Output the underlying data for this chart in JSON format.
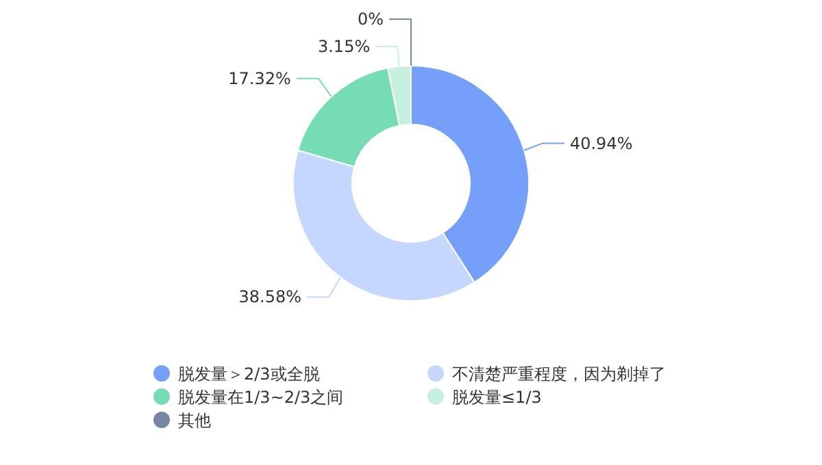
{
  "chart_data": {
    "type": "donut",
    "categories": [
      "脱发量＞2/3或全脱",
      "不清楚严重程度，因为剃掉了",
      "脱发量在1/3~2/3之间",
      "脱发量≤1/3",
      "其他"
    ],
    "values": [
      40.94,
      38.58,
      17.32,
      3.15,
      0
    ],
    "colors": [
      "#74a0fa",
      "#c6d7fd",
      "#76dcb4",
      "#c8f0df",
      "#7585a2"
    ],
    "value_labels": [
      "40.94%",
      "38.58%",
      "17.32%",
      "3.15%",
      "0%"
    ],
    "legend": "bottom"
  }
}
